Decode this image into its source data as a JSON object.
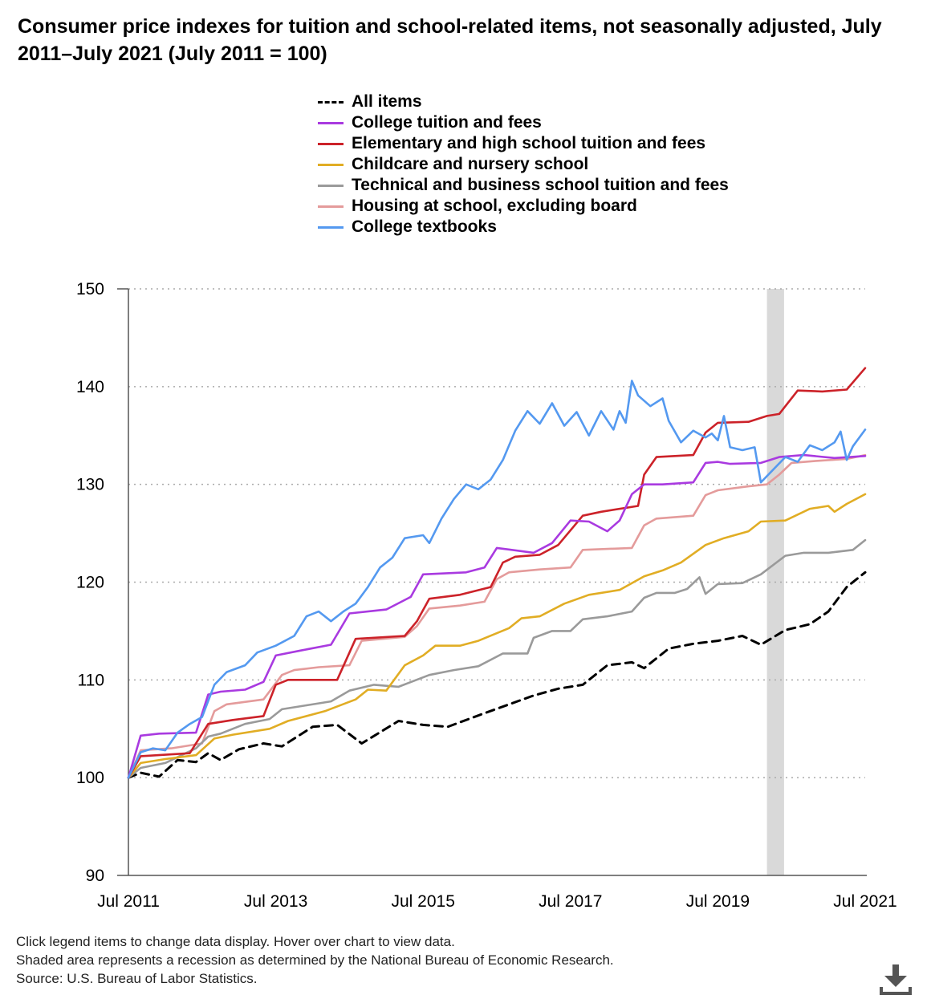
{
  "title": "Consumer price indexes for tuition and school-related items, not seasonally adjusted, July 2011–July 2021 (July 2011 = 100)",
  "footer": {
    "line1": "Click legend items to change data display. Hover over chart to view data.",
    "line2": "Shaded area represents a recession as determined by the National Bureau of Economic Research.",
    "line3": "Source: U.S. Bureau of Labor Statistics."
  },
  "download_icon": "download-icon",
  "chart_data": {
    "type": "line",
    "title": "Consumer price indexes for tuition and school-related items, not seasonally adjusted, July 2011–July 2021 (July 2011 = 100)",
    "xlabel": "",
    "ylabel": "",
    "x_start": "Jul 2011",
    "x_end": "Jul 2021",
    "ylim": [
      90,
      150
    ],
    "yticks": [
      90,
      100,
      110,
      120,
      130,
      140,
      150
    ],
    "xticks": [
      "Jul 2011",
      "Jul 2013",
      "Jul 2015",
      "Jul 2017",
      "Jul 2019",
      "Jul 2021"
    ],
    "grid": true,
    "recession": {
      "label": "Recession",
      "start_month": 104,
      "end_month": 106,
      "color": "#d9d9d9"
    },
    "legend_position": "top",
    "series": [
      {
        "name": "All items",
        "color": "#000000",
        "dash": true,
        "values": [
          [
            0,
            100
          ],
          [
            2,
            100.5
          ],
          [
            5,
            100.1
          ],
          [
            8,
            101.8
          ],
          [
            11,
            101.6
          ],
          [
            13,
            102.5
          ],
          [
            15,
            101.8
          ],
          [
            18,
            102.9
          ],
          [
            22,
            103.5
          ],
          [
            25,
            103.2
          ],
          [
            30,
            105.2
          ],
          [
            34,
            105.4
          ],
          [
            38,
            103.5
          ],
          [
            44,
            105.8
          ],
          [
            48,
            105.4
          ],
          [
            52,
            105.2
          ],
          [
            58,
            106.6
          ],
          [
            62,
            107.5
          ],
          [
            66,
            108.4
          ],
          [
            70,
            109.1
          ],
          [
            74,
            109.5
          ],
          [
            78,
            111.5
          ],
          [
            82,
            111.8
          ],
          [
            84,
            111.2
          ],
          [
            88,
            113.2
          ],
          [
            92,
            113.7
          ],
          [
            96,
            114.0
          ],
          [
            100,
            114.5
          ],
          [
            103,
            113.6
          ],
          [
            107,
            115.1
          ],
          [
            111,
            115.7
          ],
          [
            114,
            117.0
          ],
          [
            117,
            119.5
          ],
          [
            120,
            121.0
          ]
        ]
      },
      {
        "name": "College tuition and fees",
        "color": "#a93ae0",
        "dash": false,
        "values": [
          [
            0,
            100
          ],
          [
            2,
            104.3
          ],
          [
            5,
            104.5
          ],
          [
            11,
            104.6
          ],
          [
            13,
            108.5
          ],
          [
            15,
            108.8
          ],
          [
            19,
            109.0
          ],
          [
            22,
            109.8
          ],
          [
            24,
            112.5
          ],
          [
            28,
            113.0
          ],
          [
            33,
            113.6
          ],
          [
            36,
            116.8
          ],
          [
            42,
            117.2
          ],
          [
            46,
            118.5
          ],
          [
            48,
            120.8
          ],
          [
            55,
            121.0
          ],
          [
            58,
            121.5
          ],
          [
            60,
            123.5
          ],
          [
            66,
            123.0
          ],
          [
            69,
            124.0
          ],
          [
            72,
            126.3
          ],
          [
            75,
            126.2
          ],
          [
            78,
            125.2
          ],
          [
            80,
            126.3
          ],
          [
            82,
            129.0
          ],
          [
            84,
            130.0
          ],
          [
            87,
            130.0
          ],
          [
            92,
            130.2
          ],
          [
            94,
            132.2
          ],
          [
            96,
            132.3
          ],
          [
            98,
            132.1
          ],
          [
            103,
            132.2
          ],
          [
            106,
            132.8
          ],
          [
            110,
            133.0
          ],
          [
            115,
            132.7
          ],
          [
            120,
            132.9
          ]
        ]
      },
      {
        "name": "Elementary and high school tuition and fees",
        "color": "#cc2229",
        "dash": false,
        "values": [
          [
            0,
            100
          ],
          [
            2,
            102.2
          ],
          [
            10,
            102.5
          ],
          [
            13,
            105.5
          ],
          [
            17,
            105.9
          ],
          [
            22,
            106.3
          ],
          [
            24,
            109.5
          ],
          [
            26,
            110.0
          ],
          [
            34,
            110.0
          ],
          [
            37,
            114.2
          ],
          [
            45,
            114.5
          ],
          [
            47,
            116.0
          ],
          [
            49,
            118.3
          ],
          [
            54,
            118.7
          ],
          [
            59,
            119.5
          ],
          [
            61,
            122.0
          ],
          [
            63,
            122.6
          ],
          [
            67,
            122.8
          ],
          [
            70,
            123.8
          ],
          [
            74,
            126.8
          ],
          [
            77,
            127.2
          ],
          [
            83,
            127.8
          ],
          [
            84,
            131.0
          ],
          [
            86,
            132.8
          ],
          [
            92,
            133.0
          ],
          [
            94,
            135.3
          ],
          [
            96,
            136.3
          ],
          [
            101,
            136.4
          ],
          [
            104,
            137.0
          ],
          [
            106,
            137.2
          ],
          [
            109,
            139.6
          ],
          [
            113,
            139.5
          ],
          [
            117,
            139.7
          ],
          [
            120,
            141.9
          ]
        ]
      },
      {
        "name": "Childcare and nursery school",
        "color": "#e1ad24",
        "dash": false,
        "values": [
          [
            0,
            100
          ],
          [
            2,
            101.5
          ],
          [
            6,
            101.9
          ],
          [
            11,
            102.3
          ],
          [
            14,
            104.0
          ],
          [
            17,
            104.4
          ],
          [
            23,
            105.0
          ],
          [
            26,
            105.8
          ],
          [
            32,
            106.8
          ],
          [
            37,
            108.0
          ],
          [
            39,
            109.0
          ],
          [
            42,
            108.9
          ],
          [
            45,
            111.5
          ],
          [
            48,
            112.5
          ],
          [
            50,
            113.5
          ],
          [
            54,
            113.5
          ],
          [
            57,
            114.0
          ],
          [
            62,
            115.3
          ],
          [
            64,
            116.3
          ],
          [
            67,
            116.5
          ],
          [
            71,
            117.8
          ],
          [
            75,
            118.7
          ],
          [
            80,
            119.2
          ],
          [
            84,
            120.6
          ],
          [
            87,
            121.2
          ],
          [
            90,
            122.0
          ],
          [
            94,
            123.8
          ],
          [
            97,
            124.5
          ],
          [
            101,
            125.2
          ],
          [
            103,
            126.2
          ],
          [
            107,
            126.3
          ],
          [
            111,
            127.5
          ],
          [
            114,
            127.8
          ],
          [
            115,
            127.2
          ],
          [
            117,
            128.0
          ],
          [
            120,
            129.0
          ]
        ]
      },
      {
        "name": "Technical and business school tuition and fees",
        "color": "#9a9a9a",
        "dash": false,
        "values": [
          [
            0,
            100
          ],
          [
            2,
            101.0
          ],
          [
            6,
            101.5
          ],
          [
            11,
            103.0
          ],
          [
            13,
            104.2
          ],
          [
            15,
            104.5
          ],
          [
            19,
            105.5
          ],
          [
            23,
            106.0
          ],
          [
            25,
            107.0
          ],
          [
            29,
            107.4
          ],
          [
            33,
            107.8
          ],
          [
            36,
            108.9
          ],
          [
            40,
            109.5
          ],
          [
            44,
            109.3
          ],
          [
            49,
            110.5
          ],
          [
            53,
            111.0
          ],
          [
            57,
            111.4
          ],
          [
            61,
            112.7
          ],
          [
            65,
            112.7
          ],
          [
            66,
            114.3
          ],
          [
            69,
            115.0
          ],
          [
            72,
            115.0
          ],
          [
            74,
            116.2
          ],
          [
            78,
            116.5
          ],
          [
            82,
            117.0
          ],
          [
            84,
            118.4
          ],
          [
            86,
            118.9
          ],
          [
            89,
            118.9
          ],
          [
            91,
            119.3
          ],
          [
            93,
            120.5
          ],
          [
            94,
            118.8
          ],
          [
            96,
            119.8
          ],
          [
            100,
            119.9
          ],
          [
            103,
            120.8
          ],
          [
            107,
            122.7
          ],
          [
            110,
            123.0
          ],
          [
            114,
            123.0
          ],
          [
            118,
            123.3
          ],
          [
            120,
            124.3
          ]
        ]
      },
      {
        "name": "Housing at school, excluding board",
        "color": "#e49b9b",
        "dash": false,
        "values": [
          [
            0,
            100
          ],
          [
            2,
            102.8
          ],
          [
            7,
            103.0
          ],
          [
            12,
            103.5
          ],
          [
            14,
            106.8
          ],
          [
            16,
            107.5
          ],
          [
            22,
            108.0
          ],
          [
            25,
            110.5
          ],
          [
            27,
            111.0
          ],
          [
            31,
            111.3
          ],
          [
            36,
            111.5
          ],
          [
            38,
            114.0
          ],
          [
            45,
            114.4
          ],
          [
            47,
            115.5
          ],
          [
            49,
            117.3
          ],
          [
            54,
            117.6
          ],
          [
            58,
            118.0
          ],
          [
            60,
            120.3
          ],
          [
            62,
            121.0
          ],
          [
            67,
            121.3
          ],
          [
            72,
            121.5
          ],
          [
            74,
            123.3
          ],
          [
            82,
            123.5
          ],
          [
            84,
            125.8
          ],
          [
            86,
            126.5
          ],
          [
            92,
            126.8
          ],
          [
            94,
            128.9
          ],
          [
            96,
            129.4
          ],
          [
            101,
            129.8
          ],
          [
            104,
            130.0
          ],
          [
            106,
            131.0
          ],
          [
            108,
            132.2
          ],
          [
            112,
            132.4
          ],
          [
            117,
            132.6
          ],
          [
            120,
            133.0
          ]
        ]
      },
      {
        "name": "College textbooks",
        "color": "#5499f0",
        "dash": false,
        "values": [
          [
            0,
            100
          ],
          [
            2,
            102.6
          ],
          [
            4,
            103.0
          ],
          [
            6,
            102.8
          ],
          [
            8,
            104.6
          ],
          [
            10,
            105.5
          ],
          [
            12,
            106.2
          ],
          [
            14,
            109.5
          ],
          [
            16,
            110.8
          ],
          [
            19,
            111.5
          ],
          [
            21,
            112.8
          ],
          [
            24,
            113.5
          ],
          [
            27,
            114.5
          ],
          [
            29,
            116.5
          ],
          [
            31,
            117.0
          ],
          [
            33,
            116.0
          ],
          [
            35,
            117.0
          ],
          [
            37,
            117.8
          ],
          [
            39,
            119.5
          ],
          [
            41,
            121.5
          ],
          [
            43,
            122.5
          ],
          [
            45,
            124.5
          ],
          [
            48,
            124.8
          ],
          [
            49,
            124.0
          ],
          [
            51,
            126.5
          ],
          [
            53,
            128.5
          ],
          [
            55,
            130.0
          ],
          [
            57,
            129.5
          ],
          [
            59,
            130.5
          ],
          [
            61,
            132.5
          ],
          [
            63,
            135.5
          ],
          [
            65,
            137.5
          ],
          [
            67,
            136.2
          ],
          [
            69,
            138.3
          ],
          [
            71,
            136.0
          ],
          [
            73,
            137.4
          ],
          [
            75,
            135.0
          ],
          [
            77,
            137.5
          ],
          [
            79,
            135.6
          ],
          [
            80,
            137.5
          ],
          [
            81,
            136.3
          ],
          [
            82,
            140.6
          ],
          [
            83,
            139.1
          ],
          [
            85,
            138.0
          ],
          [
            87,
            138.8
          ],
          [
            88,
            136.5
          ],
          [
            90,
            134.3
          ],
          [
            92,
            135.5
          ],
          [
            94,
            134.8
          ],
          [
            95,
            135.2
          ],
          [
            96,
            134.5
          ],
          [
            97,
            137.0
          ],
          [
            98,
            133.8
          ],
          [
            100,
            133.5
          ],
          [
            102,
            133.8
          ],
          [
            103,
            130.2
          ],
          [
            105,
            131.5
          ],
          [
            107,
            132.8
          ],
          [
            109,
            132.3
          ],
          [
            111,
            134.0
          ],
          [
            113,
            133.5
          ],
          [
            115,
            134.3
          ],
          [
            116,
            135.4
          ],
          [
            117,
            132.5
          ],
          [
            118,
            133.9
          ],
          [
            120,
            135.6
          ]
        ]
      }
    ]
  }
}
